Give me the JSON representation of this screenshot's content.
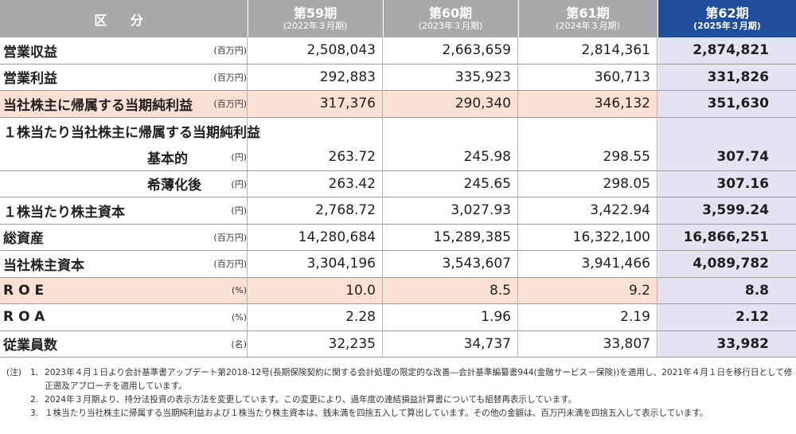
{
  "header": {
    "category": "区 分",
    "periods": [
      {
        "label": "第59期",
        "sub": "(2022年３月期)"
      },
      {
        "label": "第60期",
        "sub": "(2023年３月期)"
      },
      {
        "label": "第61期",
        "sub": "(2024年３月期)"
      },
      {
        "label": "第62期",
        "sub": "(2025年３月期)"
      }
    ]
  },
  "rows": [
    {
      "label": "営業収益",
      "unit": "(百万円)",
      "values": [
        "2,508,043",
        "2,663,659",
        "2,814,361",
        "2,874,821"
      ]
    },
    {
      "label": "営業利益",
      "unit": "(百万円)",
      "values": [
        "292,883",
        "335,923",
        "360,713",
        "331,826"
      ]
    },
    {
      "label": "当社株主に帰属する当期純利益",
      "unit": "(百万円)",
      "values": [
        "317,376",
        "290,340",
        "346,132",
        "351,630"
      ]
    },
    {
      "label": "１株当たり当社株主に帰属する当期純利益",
      "unit": "",
      "values": [
        "",
        "",
        "",
        ""
      ]
    },
    {
      "label": "基本的",
      "unit": "(円)",
      "values": [
        "263.72",
        "245.98",
        "298.55",
        "307.74"
      ]
    },
    {
      "label": "希薄化後",
      "unit": "(円)",
      "values": [
        "263.42",
        "245.65",
        "298.05",
        "307.16"
      ]
    },
    {
      "label": "１株当たり株主資本",
      "unit": "(円)",
      "values": [
        "2,768.72",
        "3,027.93",
        "3,422.94",
        "3,599.24"
      ]
    },
    {
      "label": "総資産",
      "unit": "(百万円)",
      "values": [
        "14,280,684",
        "15,289,385",
        "16,322,100",
        "16,866,251"
      ]
    },
    {
      "label": "当社株主資本",
      "unit": "(百万円)",
      "values": [
        "3,304,196",
        "3,543,607",
        "3,941,466",
        "4,089,782"
      ]
    },
    {
      "label": "ROE",
      "unit": "(%)",
      "values": [
        "10.0",
        "8.5",
        "9.2",
        "8.8"
      ]
    },
    {
      "label": "ROA",
      "unit": "(%)",
      "values": [
        "2.28",
        "1.96",
        "2.19",
        "2.12"
      ]
    },
    {
      "label": "従業員数",
      "unit": "(名)",
      "values": [
        "32,235",
        "34,737",
        "33,807",
        "33,982"
      ]
    }
  ],
  "notes": {
    "prefix": "(注)",
    "items": [
      {
        "num": "1.",
        "text": "2023年４月１日より会計基準書アップデート第2018-12号(長期保険契約に関する会計処理の限定的な改善―会計基準編纂書944(金融サービス－保険))を適用し、2021年４月１日を移行日として修正遡及アプローチを適用しています。"
      },
      {
        "num": "2.",
        "text": "2024年３月期より、持分法投資の表示方法を変更しています。この変更により、過年度の連結損益計算書についても組替再表示しています。"
      },
      {
        "num": "3.",
        "text": "１株当たり当社株主に帰属する当期純利益および１株当たり株主資本は、銭未満を四捨五入して算出しています。その他の金額は、百万円未満を四捨五入して表示しています。"
      }
    ]
  }
}
